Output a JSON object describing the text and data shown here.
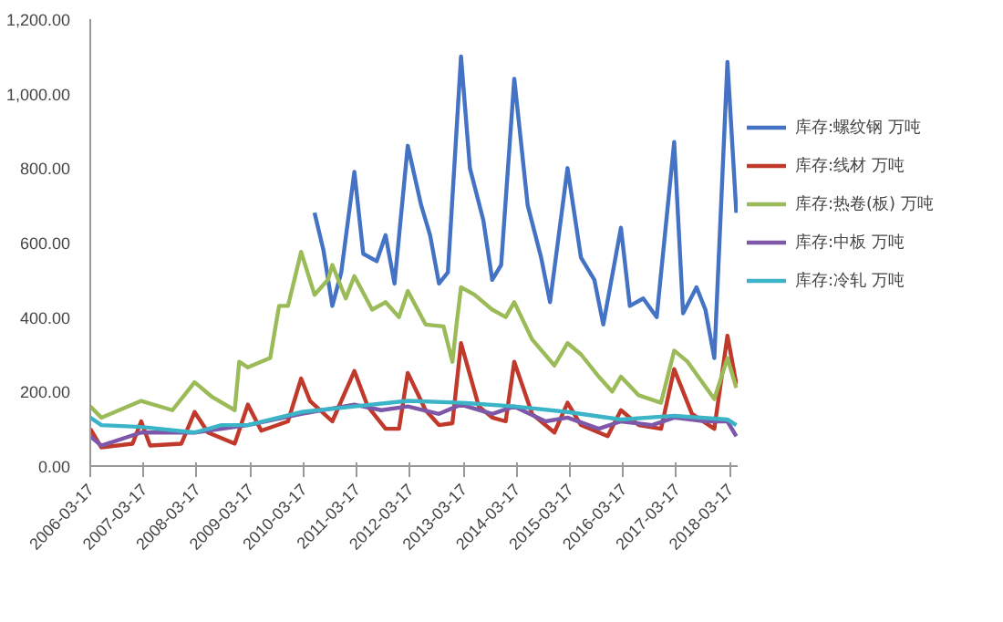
{
  "chart_data": {
    "type": "line",
    "xlim": [
      "2006-03-17",
      "2018-05-10"
    ],
    "xticks": [
      "2006-03-17",
      "2007-03-17",
      "2008-03-17",
      "2009-03-17",
      "2010-03-17",
      "2011-03-17",
      "2012-03-17",
      "2013-03-17",
      "2014-03-17",
      "2015-03-17",
      "2016-03-17",
      "2017-03-17",
      "2018-03-17"
    ],
    "ylim": [
      0,
      1200
    ],
    "yticks": [
      {
        "value": 0,
        "label": "0.00"
      },
      {
        "value": 200,
        "label": "200.00"
      },
      {
        "value": 400,
        "label": "400.00"
      },
      {
        "value": 600,
        "label": "600.00"
      },
      {
        "value": 800,
        "label": "800.00"
      },
      {
        "value": 1000,
        "label": "1,000.00"
      },
      {
        "value": 1200,
        "label": "1,200.00"
      }
    ],
    "grid": false,
    "legend": "right",
    "marker": "none",
    "line_style": "solid",
    "series": [
      {
        "name": "库存:螺纹钢 万吨",
        "color": "#4472c4",
        "x": [
          "2010-06",
          "2010-08",
          "2010-10",
          "2010-12",
          "2011-03",
          "2011-05",
          "2011-08",
          "2011-10",
          "2011-12",
          "2012-03",
          "2012-06",
          "2012-08",
          "2012-10",
          "2012-12",
          "2013-03",
          "2013-05",
          "2013-08",
          "2013-10",
          "2013-12",
          "2014-03",
          "2014-06",
          "2014-09",
          "2014-11",
          "2015-03",
          "2015-06",
          "2015-09",
          "2015-11",
          "2016-03",
          "2016-05",
          "2016-08",
          "2016-11",
          "2017-03",
          "2017-05",
          "2017-08",
          "2017-10",
          "2017-12",
          "2018-03",
          "2018-05"
        ],
        "values": [
          680,
          580,
          430,
          520,
          790,
          570,
          550,
          620,
          490,
          860,
          700,
          620,
          490,
          520,
          1100,
          800,
          660,
          500,
          540,
          1040,
          700,
          560,
          440,
          800,
          560,
          500,
          380,
          640,
          430,
          450,
          400,
          870,
          410,
          480,
          420,
          290,
          1085,
          680
        ]
      },
      {
        "name": "库存:线材 万吨",
        "color": "#c0392b",
        "x": [
          "2006-03-17",
          "2006-06",
          "2007-01",
          "2007-03",
          "2007-05",
          "2007-12",
          "2008-03",
          "2008-06",
          "2008-12",
          "2009-03",
          "2009-06",
          "2009-12",
          "2010-03",
          "2010-05",
          "2010-10",
          "2011-03",
          "2011-06",
          "2011-10",
          "2012-01",
          "2012-03",
          "2012-07",
          "2012-10",
          "2013-01",
          "2013-03",
          "2013-07",
          "2013-10",
          "2014-01",
          "2014-03",
          "2014-07",
          "2014-12",
          "2015-03",
          "2015-06",
          "2015-12",
          "2016-03",
          "2016-07",
          "2016-12",
          "2017-03",
          "2017-07",
          "2017-12",
          "2018-03",
          "2018-05"
        ],
        "values": [
          100,
          50,
          60,
          120,
          55,
          60,
          145,
          90,
          60,
          165,
          95,
          120,
          235,
          175,
          120,
          255,
          160,
          100,
          100,
          250,
          150,
          110,
          115,
          330,
          160,
          130,
          120,
          280,
          140,
          90,
          170,
          110,
          80,
          150,
          110,
          100,
          260,
          140,
          100,
          350,
          220
        ]
      },
      {
        "name": "库存:热卷(板) 万吨",
        "color": "#9bbb59",
        "x": [
          "2006-03-17",
          "2006-06",
          "2007-03",
          "2007-10",
          "2008-03",
          "2008-07",
          "2008-12",
          "2009-01",
          "2009-03",
          "2009-08",
          "2009-10",
          "2009-12",
          "2010-03",
          "2010-06",
          "2010-09",
          "2010-10",
          "2011-01",
          "2011-03",
          "2011-07",
          "2011-10",
          "2012-01",
          "2012-03",
          "2012-07",
          "2012-11",
          "2013-01",
          "2013-02",
          "2013-03",
          "2013-06",
          "2013-10",
          "2014-01",
          "2014-03",
          "2014-07",
          "2014-12",
          "2015-03",
          "2015-06",
          "2015-10",
          "2016-01",
          "2016-03",
          "2016-07",
          "2016-12",
          "2017-03",
          "2017-06",
          "2017-12",
          "2018-03",
          "2018-05"
        ],
        "values": [
          160,
          130,
          175,
          150,
          225,
          185,
          150,
          280,
          265,
          290,
          430,
          430,
          575,
          460,
          500,
          540,
          450,
          510,
          420,
          440,
          400,
          470,
          380,
          375,
          280,
          390,
          480,
          460,
          420,
          400,
          440,
          340,
          270,
          330,
          300,
          240,
          200,
          240,
          190,
          170,
          310,
          280,
          180,
          290,
          210
        ]
      },
      {
        "name": "库存:中板 万吨",
        "color": "#7e57a8",
        "x": [
          "2006-03-17",
          "2006-06",
          "2007-03",
          "2008-03",
          "2009-03",
          "2010-03",
          "2011-03",
          "2011-09",
          "2012-03",
          "2012-10",
          "2013-03",
          "2013-10",
          "2014-03",
          "2014-10",
          "2015-03",
          "2015-10",
          "2016-03",
          "2016-10",
          "2017-03",
          "2017-10",
          "2018-03",
          "2018-05"
        ],
        "values": [
          80,
          55,
          90,
          90,
          110,
          140,
          165,
          150,
          160,
          140,
          165,
          140,
          160,
          120,
          130,
          100,
          120,
          110,
          130,
          120,
          120,
          80
        ]
      },
      {
        "name": "库存:冷轧 万吨",
        "color": "#3cb4c8",
        "x": [
          "2006-03-17",
          "2006-06",
          "2007-03",
          "2008-03",
          "2008-09",
          "2009-03",
          "2010-03",
          "2011-03",
          "2012-03",
          "2013-03",
          "2014-03",
          "2015-03",
          "2016-03",
          "2017-03",
          "2018-03",
          "2018-05"
        ],
        "values": [
          130,
          110,
          105,
          90,
          110,
          110,
          145,
          160,
          175,
          170,
          160,
          145,
          125,
          135,
          125,
          110
        ]
      }
    ]
  }
}
